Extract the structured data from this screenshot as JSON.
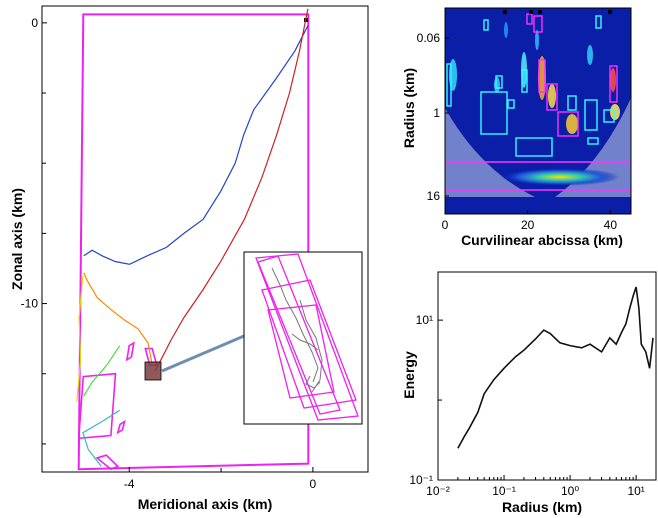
{
  "chart_data": [
    {
      "type": "line",
      "panel": "trajectories-map",
      "xlabel": "Meridional axis (km)",
      "ylabel": "Zonal axis (km)",
      "xlim": [
        -5.9,
        1.2
      ],
      "ylim": [
        -16,
        0.6
      ],
      "x_ticks": [
        -4,
        0
      ],
      "y_ticks": [
        0,
        -10
      ],
      "series": [
        {
          "color": "#2244cc",
          "x": [
            -0.1,
            -0.4,
            -0.8,
            -1.3,
            -1.5,
            -1.7,
            -2.0,
            -2.4,
            -2.8,
            -3.2,
            -3.6,
            -4.0,
            -4.3,
            -4.6,
            -4.8,
            -5.0
          ],
          "y": [
            -0.1,
            -1.0,
            -2.0,
            -3.1,
            -4.0,
            -5.0,
            -6.0,
            -7.0,
            -7.5,
            -8.0,
            -8.3,
            -8.6,
            -8.5,
            -8.3,
            -8.1,
            -8.3
          ]
        },
        {
          "color": "#cc2222",
          "x": [
            -0.1,
            -0.3,
            -0.5,
            -0.8,
            -1.1,
            -1.5,
            -2.0,
            -2.4,
            -2.8,
            -3.1,
            -3.3,
            -3.45
          ],
          "y": [
            0.5,
            -1.0,
            -2.5,
            -4.0,
            -5.5,
            -7.0,
            -8.5,
            -9.5,
            -10.5,
            -11.3,
            -12.0,
            -12.4
          ]
        },
        {
          "color": "#ff8800",
          "x": [
            -3.5,
            -3.6,
            -3.8,
            -4.1,
            -4.4,
            -4.7,
            -4.9,
            -5.0
          ],
          "y": [
            -12.1,
            -11.4,
            -10.9,
            -10.6,
            -10.2,
            -9.8,
            -9.2,
            -8.9
          ]
        },
        {
          "color": "#dddd00",
          "x": [
            -5.0,
            -5.1,
            -5.05,
            -5.15
          ],
          "y": [
            -9.0,
            -10.5,
            -12.0,
            -13.5
          ]
        },
        {
          "color": "#44dd44",
          "x": [
            -4.2,
            -4.5,
            -4.8,
            -5.0
          ],
          "y": [
            -11.5,
            -12.2,
            -12.8,
            -13.3
          ]
        },
        {
          "color": "#33bbbb",
          "x": [
            -4.2,
            -4.6,
            -5.0,
            -4.9,
            -4.6
          ],
          "y": [
            -13.8,
            -14.2,
            -14.6,
            -15.2,
            -15.8
          ]
        }
      ],
      "ellipses_color": "#ee22ee",
      "inset_highlight_color": "#7a3d3d"
    },
    {
      "type": "heatmap",
      "panel": "wavelet-map",
      "xlabel": "Curvilinear abcissa (km)",
      "ylabel": "Radius (km)",
      "xlim": [
        0,
        45
      ],
      "x_ticks": [
        0,
        20,
        40
      ],
      "y_ticks": [
        "0.06",
        "1",
        "16"
      ],
      "colormap": "jet"
    },
    {
      "type": "line",
      "panel": "energy-spectrum",
      "xlabel": "Radius (km)",
      "ylabel": "Energy",
      "x_scale": "log",
      "y_scale": "log",
      "xlim": [
        0.01,
        20
      ],
      "ylim": [
        0.1,
        40
      ],
      "x_ticks": [
        "10⁻²",
        "10⁻¹",
        "10⁰",
        "10¹"
      ],
      "y_ticks": [
        "10⁻¹",
        "10¹"
      ],
      "series": [
        {
          "x": [
            0.02,
            0.025,
            0.03,
            0.04,
            0.05,
            0.07,
            0.1,
            0.15,
            0.2,
            0.3,
            0.4,
            0.5,
            0.7,
            1,
            1.5,
            2,
            3,
            4,
            5,
            6,
            7,
            8,
            9,
            10,
            11,
            12,
            14,
            16,
            18
          ],
          "y": [
            0.25,
            0.35,
            0.45,
            0.7,
            1.2,
            1.8,
            2.5,
            3.5,
            4.2,
            5.8,
            7.5,
            6.8,
            5.2,
            4.8,
            4.5,
            5.0,
            4.0,
            6.0,
            5.0,
            7.0,
            9.0,
            14.0,
            20.0,
            26.0,
            14.0,
            5.0,
            4.0,
            2.5,
            6.0
          ]
        }
      ]
    }
  ]
}
